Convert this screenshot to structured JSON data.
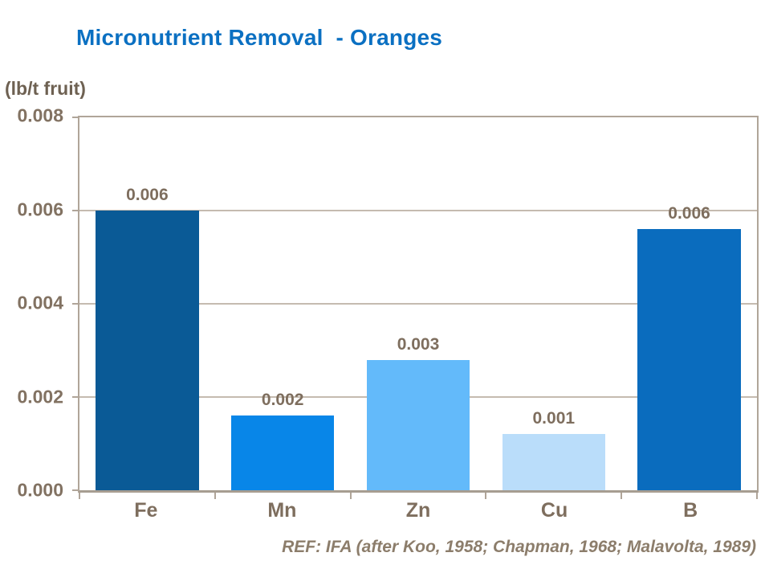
{
  "title": "Micronutrient Removal  - Oranges",
  "unit_label": "(lb/t fruit)",
  "reference": "REF: IFA (after Koo, 1958; Chapman, 1968; Malavolta, 1989)",
  "colors": {
    "title_text": "#0b70c2",
    "axis_text": "#827262",
    "unit_text": "#6e6152",
    "reference_text": "#8c7d6b",
    "frame": "#b0a599",
    "gridline": "#c5bbb0",
    "background": "#ffffff"
  },
  "chart_data": {
    "type": "bar",
    "title": "Micronutrient Removal - Oranges",
    "xlabel": "",
    "ylabel": "(lb/t fruit)",
    "categories": [
      "Fe",
      "Mn",
      "Zn",
      "Cu",
      "B"
    ],
    "values": [
      0.006,
      0.0016,
      0.0028,
      0.0012,
      0.0056
    ],
    "data_labels": [
      "0.006",
      "0.002",
      "0.003",
      "0.001",
      "0.006"
    ],
    "bar_colors": [
      "#0a5a96",
      "#0886e8",
      "#63bafa",
      "#baddfa",
      "#0a6cbe"
    ],
    "ylim": [
      0,
      0.008
    ],
    "yticks": [
      "0.008",
      "0.006",
      "0.004",
      "0.002",
      "0.000"
    ],
    "grid": "horizontal gridlines every 0.002",
    "legend": "none"
  }
}
